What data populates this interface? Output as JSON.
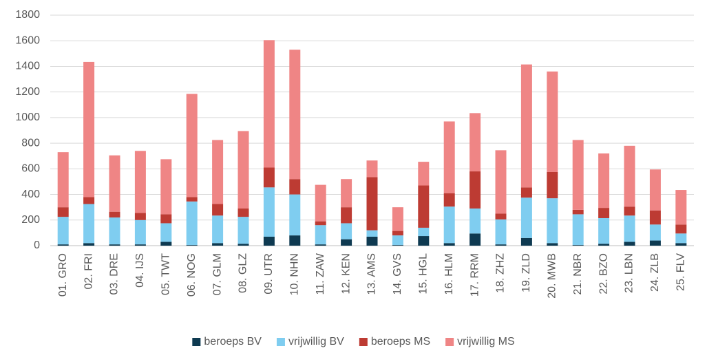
{
  "chart_data": {
    "type": "stacked_bar",
    "categories": [
      "01. GRO",
      "02. FRI",
      "03. DRE",
      "04. IJS",
      "05. TWT",
      "06. NOG",
      "07. GLM",
      "08. GLZ",
      "09. UTR",
      "10. NHN",
      "11. ZAW",
      "12. KEN",
      "13. AMS",
      "14. GVS",
      "15. HGL",
      "16. HLM",
      "17. RRM",
      "18. ZHZ",
      "19. ZLD",
      "20. MWB",
      "21. NBR",
      "22. BZO",
      "23. LBN",
      "24. ZLB",
      "25. FLV"
    ],
    "series": [
      {
        "name": "beroeps BV",
        "color": "#0e3a51",
        "values": [
          10,
          20,
          10,
          10,
          30,
          5,
          20,
          15,
          70,
          80,
          10,
          50,
          70,
          5,
          75,
          20,
          95,
          10,
          60,
          20,
          5,
          15,
          30,
          40,
          20
        ]
      },
      {
        "name": "vrijwillig BV",
        "color": "#7fcdf0",
        "values": [
          215,
          305,
          210,
          190,
          145,
          340,
          215,
          210,
          385,
          320,
          150,
          125,
          50,
          75,
          65,
          285,
          195,
          195,
          315,
          350,
          240,
          200,
          205,
          125,
          75
        ]
      },
      {
        "name": "beroeps MS",
        "color": "#bd3b33",
        "values": [
          75,
          55,
          45,
          55,
          70,
          35,
          90,
          65,
          155,
          120,
          30,
          125,
          415,
          35,
          330,
          105,
          290,
          45,
          80,
          205,
          35,
          80,
          70,
          110,
          70
        ]
      },
      {
        "name": "vrijwillig MS",
        "color": "#ef8585",
        "values": [
          430,
          1055,
          440,
          485,
          430,
          805,
          500,
          605,
          995,
          1010,
          285,
          220,
          130,
          185,
          185,
          560,
          455,
          495,
          960,
          785,
          545,
          425,
          475,
          320,
          270
        ]
      }
    ],
    "ylim": [
      0,
      1800
    ],
    "yticks": [
      0,
      200,
      400,
      600,
      800,
      1000,
      1200,
      1400,
      1600,
      1800
    ],
    "grid": true,
    "legend": "bottom"
  }
}
